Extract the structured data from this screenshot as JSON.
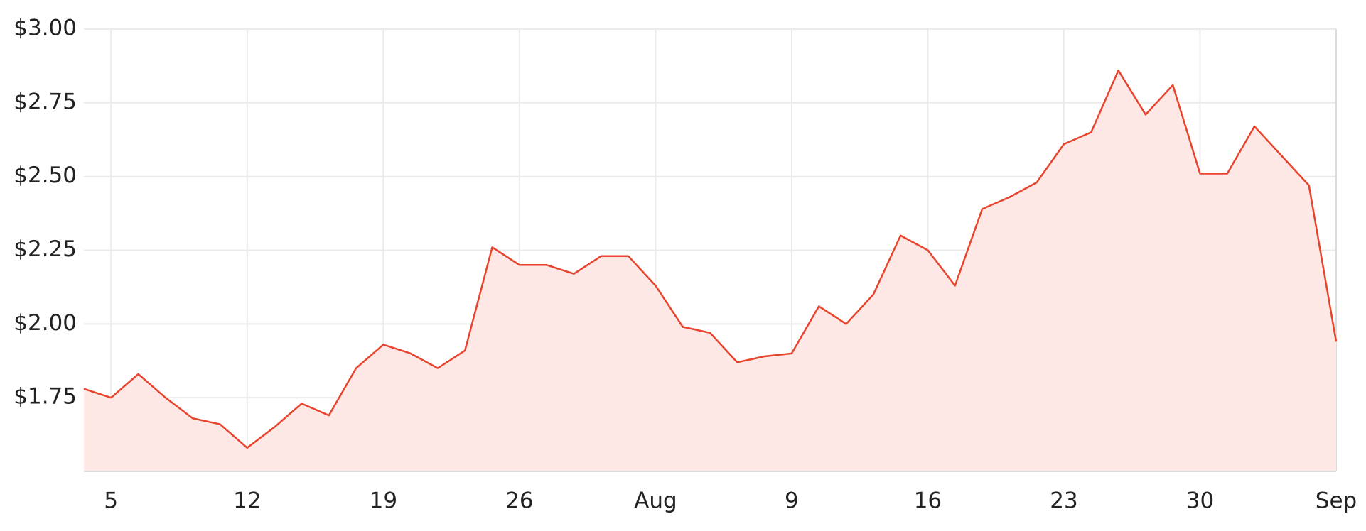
{
  "chart_data": {
    "type": "area",
    "categories": [
      null,
      "5",
      null,
      null,
      null,
      null,
      "12",
      null,
      null,
      null,
      null,
      "19",
      null,
      null,
      null,
      null,
      "26",
      null,
      null,
      null,
      null,
      "Aug",
      null,
      null,
      null,
      null,
      "9",
      null,
      null,
      null,
      null,
      "16",
      null,
      null,
      null,
      null,
      "23",
      null,
      null,
      null,
      null,
      "30",
      null,
      null,
      null,
      null,
      "Sep"
    ],
    "series": [
      {
        "color": "#e8432d",
        "fill": "#fde8e5",
        "values": [
          1.78,
          1.75,
          1.83,
          1.75,
          1.68,
          1.66,
          1.58,
          1.65,
          1.73,
          1.69,
          1.85,
          1.93,
          1.9,
          1.85,
          1.91,
          2.26,
          2.2,
          2.2,
          2.17,
          2.23,
          2.23,
          2.13,
          1.99,
          1.97,
          1.87,
          1.89,
          1.9,
          2.06,
          2.0,
          2.1,
          2.3,
          2.25,
          2.13,
          2.39,
          2.43,
          2.48,
          2.61,
          2.65,
          2.86,
          2.71,
          2.81,
          2.51,
          2.51,
          2.67,
          2.57,
          2.47,
          1.94
        ]
      }
    ],
    "ylim": [
      1.5,
      3.0
    ],
    "yticks": [
      {
        "value": 1.75,
        "label": "$1.75"
      },
      {
        "value": 2.0,
        "label": "$2.00"
      },
      {
        "value": 2.25,
        "label": "$2.25"
      },
      {
        "value": 2.5,
        "label": "$2.50"
      },
      {
        "value": 2.75,
        "label": "$2.75"
      },
      {
        "value": 3.0,
        "label": "$3.00"
      }
    ],
    "grid": true
  }
}
